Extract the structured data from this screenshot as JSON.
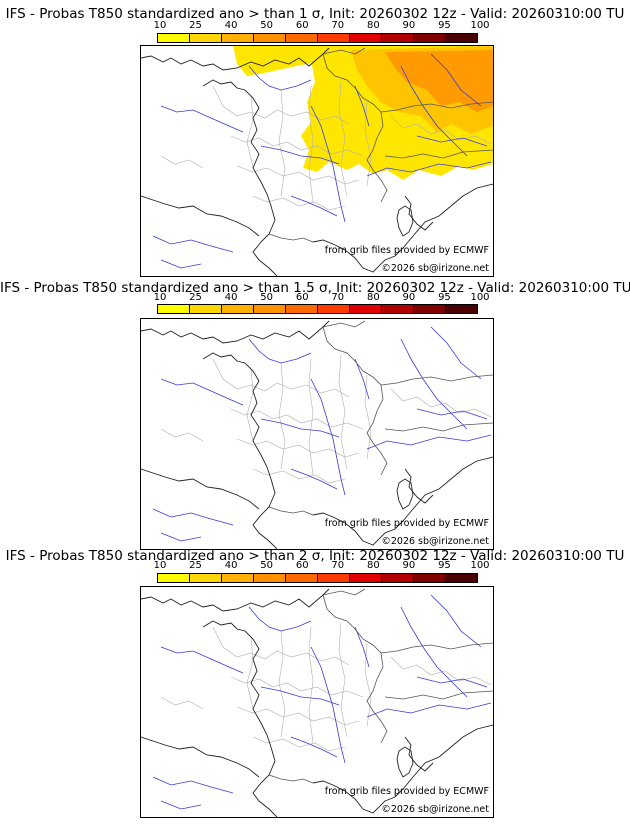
{
  "colorbar": {
    "ticks": [
      "10",
      "25",
      "40",
      "50",
      "60",
      "70",
      "80",
      "90",
      "95",
      "100"
    ],
    "colors": [
      "#ffff00",
      "#ffd700",
      "#ffb000",
      "#ff9000",
      "#ff6a00",
      "#ff3c00",
      "#e00000",
      "#b00000",
      "#800000",
      "#4a0000"
    ]
  },
  "panels": [
    {
      "title": "IFS - Probas T850  standardized ano > than 1 σ, Init: 20260302 12z - Valid: 20260310:00 TU",
      "source": "from grib files provided by ECMWF",
      "copyright": "©2026 sb@irizone.net",
      "has_field": true
    },
    {
      "title": "IFS - Probas T850  standardized ano > than 1.5 σ, Init: 20260302 12z - Valid: 20260310:00 TU",
      "source": "from grib files provided by ECMWF",
      "copyright": "©2026 sb@irizone.net",
      "has_field": false
    },
    {
      "title": "IFS - Probas T850  standardized ano > than 2 σ, Init: 20260302 12z - Valid: 20260310:00 TU",
      "source": "from grib files provided by ECMWF",
      "copyright": "©2026 sb@irizone.net",
      "has_field": false
    }
  ]
}
